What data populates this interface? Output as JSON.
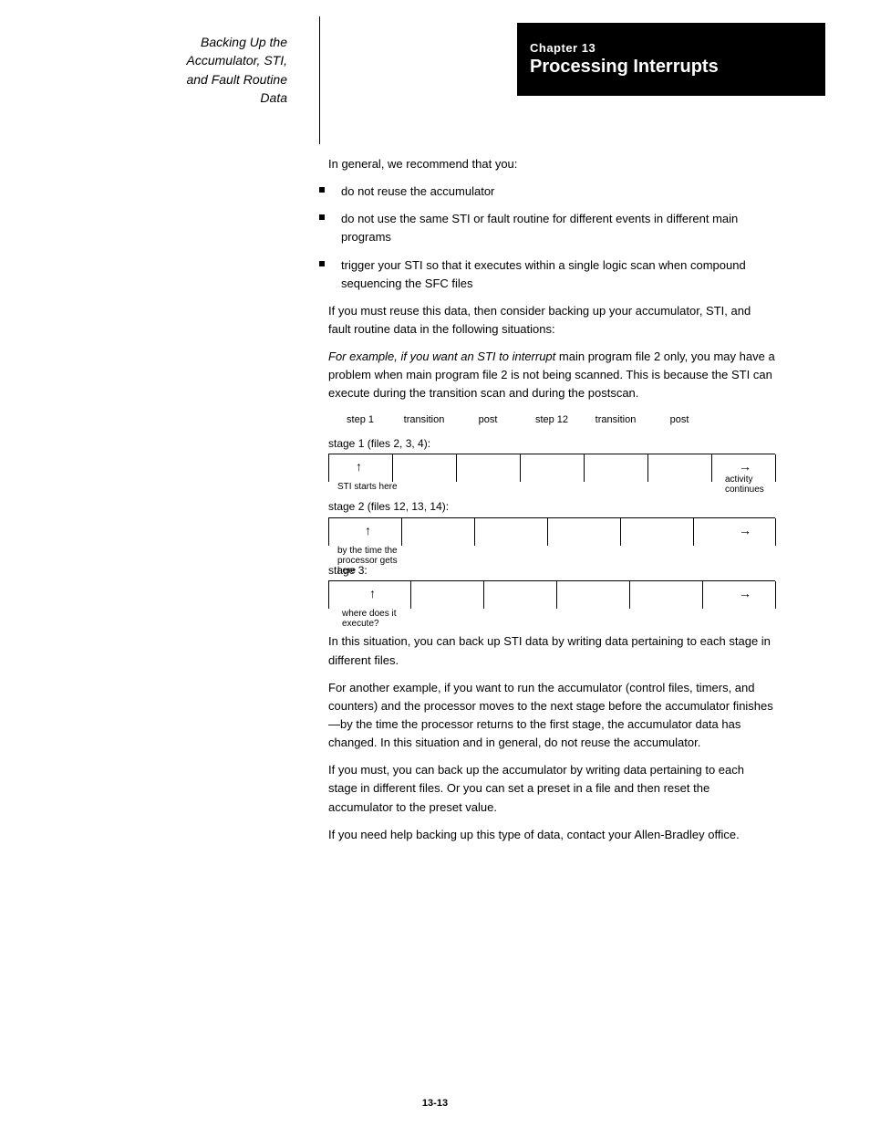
{
  "chapter": {
    "number": "Chapter 13",
    "title": "Processing Interrupts"
  },
  "sidebar": {
    "line1": "Backing Up the",
    "line2": "Accumulator, STI,",
    "line3": "and Fault Routine",
    "line4": "Data"
  },
  "body": {
    "intro": "In general, we recommend that you:",
    "bullet1": "do not reuse the accumulator",
    "bullet2": "do not use the same STI or fault routine for different events in different main programs",
    "bullet3": "trigger your STI so that it executes within a single logic scan when compound sequencing the SFC files",
    "para1": "If you must reuse this data, then consider backing up your accumulator, STI, and fault routine data in the following situations:",
    "example1_lead": "For example, if you want an STI to interrupt",
    "example1_text": "main program file 2 only, you may have a problem when main program file 2 is not being scanned. This is because the STI can execute during the transition scan and during the postscan.",
    "labels": [
      "step 1",
      "transition",
      "post",
      "step 12",
      "transition",
      "post"
    ],
    "stage1_label": "stage 1 (files 2, 3, 4):",
    "stage2_label": "stage 2 (files 12, 13, 14):",
    "stage3_label": "stage 3:",
    "arrow_under_label1": "STI starts here",
    "arrow_right_label": "activity continues",
    "arrow_under_label2": "by the time the processor gets here",
    "arrow_under_label3": "where does it execute?",
    "para2": "In this situation, you can back up STI data by writing data pertaining to each stage in different files.",
    "para3": "For another example, if you want to run the accumulator (control files, timers, and counters) and the processor moves to the next stage before the accumulator finishes—by the time the processor returns to the first stage, the accumulator data has changed. In this situation and in general, do not reuse the accumulator.",
    "para4": "If you must, you can back up the accumulator by writing data pertaining to each stage in different files. Or you can set a preset in a file and then reset the accumulator to the preset value.",
    "para5": "If you need help backing up this type of data, contact your Allen-Bradley office."
  },
  "scale": {
    "tick_positions_1": [
      0,
      70,
      140,
      210,
      280,
      350,
      420,
      490
    ],
    "tick_positions_2": [
      0,
      80,
      160,
      240,
      320,
      400,
      490
    ],
    "tick_positions_3": [
      0,
      90,
      170,
      250,
      330,
      410,
      490
    ],
    "up_arrow_pos_1": 30,
    "right_arrow_pos_1": 450,
    "up_arrow_pos_2": 40,
    "right_arrow_pos_2": 450,
    "up_arrow_pos_3": 45,
    "right_arrow_pos_3": 450,
    "arrow_up_glyph": "↑",
    "arrow_right_glyph": "→"
  },
  "footer": "13-13"
}
